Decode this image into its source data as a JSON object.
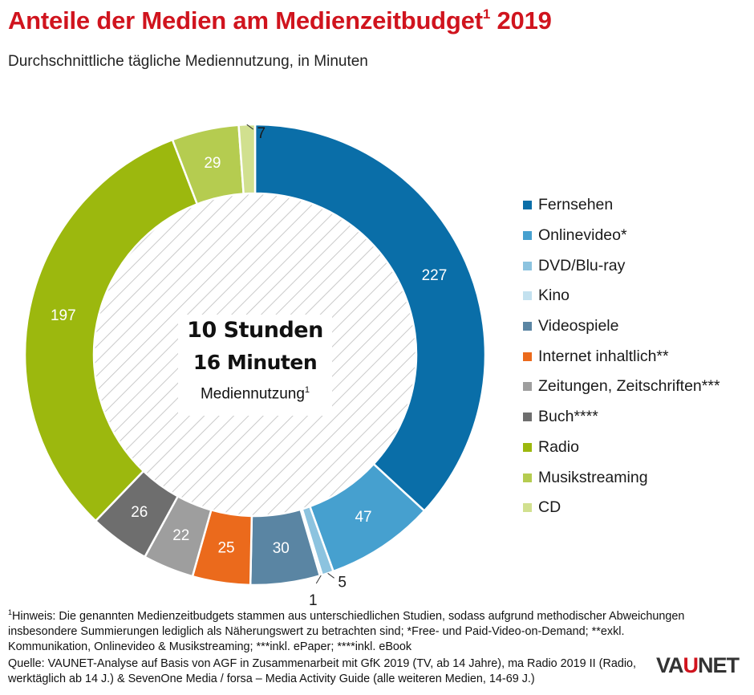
{
  "header": {
    "title": "Anteile der Medien am Medienzeitbudget",
    "title_sup": "1",
    "title_year": " 2019",
    "subtitle": "Durchschnittliche tägliche Mediennutzung, in Minuten"
  },
  "center": {
    "line1": "10 Stunden",
    "line2": "16 Minuten",
    "line3": "Mediennutzung",
    "line3_sup": "1"
  },
  "chart_data": {
    "type": "pie",
    "subtype": "donut",
    "unit": "Minuten",
    "categories": [
      "Fernsehen",
      "Onlinevideo*",
      "DVD/Blu-ray",
      "Kino",
      "Videospiele",
      "Internet inhaltlich**",
      "Zeitungen, Zeitschriften***",
      "Buch****",
      "Radio",
      "Musikstreaming",
      "CD"
    ],
    "values": [
      227,
      47,
      5,
      1,
      30,
      25,
      22,
      26,
      197,
      29,
      7
    ],
    "colors": [
      "#0a6ea8",
      "#46a0cf",
      "#8cc3df",
      "#c3e1ef",
      "#5a85a3",
      "#eb6a1c",
      "#9e9e9e",
      "#6e6e6e",
      "#9cb80e",
      "#b5cc50",
      "#d1e08f"
    ],
    "label_colors": [
      "#ffffff",
      "#ffffff",
      "#1a1a1a",
      "#1a1a1a",
      "#ffffff",
      "#ffffff",
      "#ffffff",
      "#ffffff",
      "#ffffff",
      "#ffffff",
      "#ffffff"
    ],
    "legend_position": "right",
    "center_fill": "hatched"
  },
  "footnote": {
    "sup": "1",
    "text": "Hinweis: Die genannten Medienzeitbudgets stammen aus unterschiedlichen Studien, sodass aufgrund methodischer Abweichungen insbesondere Summierungen lediglich als Näherungswert zu betrachten sind; *Free- und Paid-Video-on-Demand; **exkl. Kommunikation, Onlinevideo & Musikstreaming; ***inkl. ePaper; ****inkl. eBook"
  },
  "source": "Quelle: VAUNET-Analyse auf Basis von AGF in Zusammenarbeit mit GfK 2019 (TV, ab 14 Jahre), ma Radio 2019 II (Radio, werktäglich ab 14 J.) & SevenOne Media / forsa – Media Activity Guide (alle weiteren Medien, 14-69 J.)",
  "logo": {
    "part1": "VA",
    "part2": "U",
    "part3": "NET"
  }
}
